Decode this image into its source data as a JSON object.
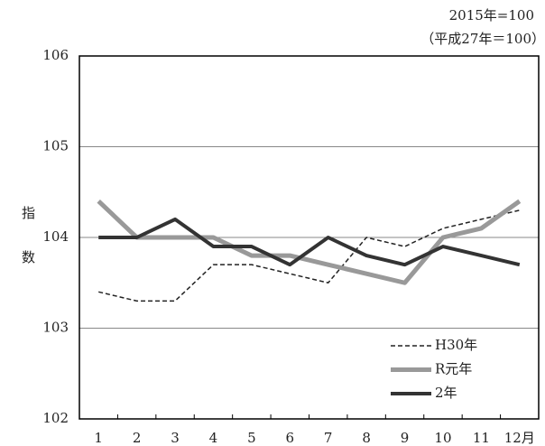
{
  "chart_data": {
    "type": "line",
    "annotations": [
      "2015年=100",
      "（平成27年＝100）"
    ],
    "ylabel": "指数",
    "categories": [
      "1",
      "2",
      "3",
      "4",
      "5",
      "6",
      "7",
      "8",
      "9",
      "10",
      "11",
      "12月"
    ],
    "series": [
      {
        "name": "H30年",
        "color": "#222222",
        "dashed": true,
        "values": [
          103.4,
          103.3,
          103.3,
          103.7,
          103.7,
          103.6,
          103.5,
          104.0,
          103.9,
          104.1,
          104.2,
          104.3
        ]
      },
      {
        "name": "R元年",
        "color": "#999999",
        "dashed": false,
        "values": [
          104.4,
          104.0,
          104.0,
          104.0,
          103.8,
          103.8,
          103.7,
          103.6,
          103.5,
          104.0,
          104.1,
          104.4
        ]
      },
      {
        "name": "2年",
        "color": "#333333",
        "dashed": false,
        "values": [
          104.0,
          104.0,
          104.2,
          103.9,
          103.9,
          103.7,
          104.0,
          103.8,
          103.7,
          103.9,
          103.8,
          103.7
        ]
      }
    ],
    "ylim": [
      102,
      106
    ],
    "yticks": [
      102,
      103,
      104,
      105,
      106
    ],
    "grid": true,
    "legend": "lower right"
  }
}
